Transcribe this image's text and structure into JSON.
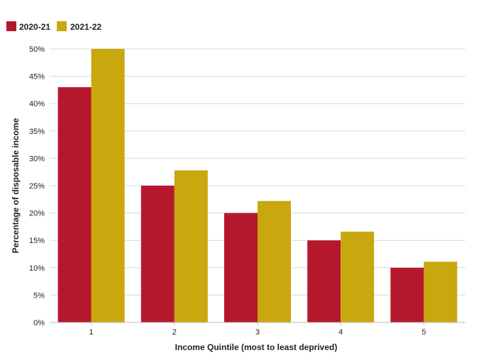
{
  "chart_data": {
    "type": "bar",
    "categories": [
      "1",
      "2",
      "3",
      "4",
      "5"
    ],
    "series": [
      {
        "name": "2020-21",
        "color": "#b5182d",
        "values": [
          43,
          25,
          20,
          15,
          10
        ]
      },
      {
        "name": "2021-22",
        "color": "#c9a70e",
        "values": [
          50,
          27.8,
          22.2,
          16.6,
          11.1
        ]
      }
    ],
    "xlabel": "Income Quintile (most to least deprived)",
    "ylabel": "Percentage of disposable income",
    "ylim": [
      0,
      50
    ],
    "yticks": [
      "0%",
      "5%",
      "10%",
      "15%",
      "20%",
      "25%",
      "30%",
      "35%",
      "40%",
      "45%",
      "50%"
    ],
    "grid": true,
    "legend_position": "top-left"
  }
}
